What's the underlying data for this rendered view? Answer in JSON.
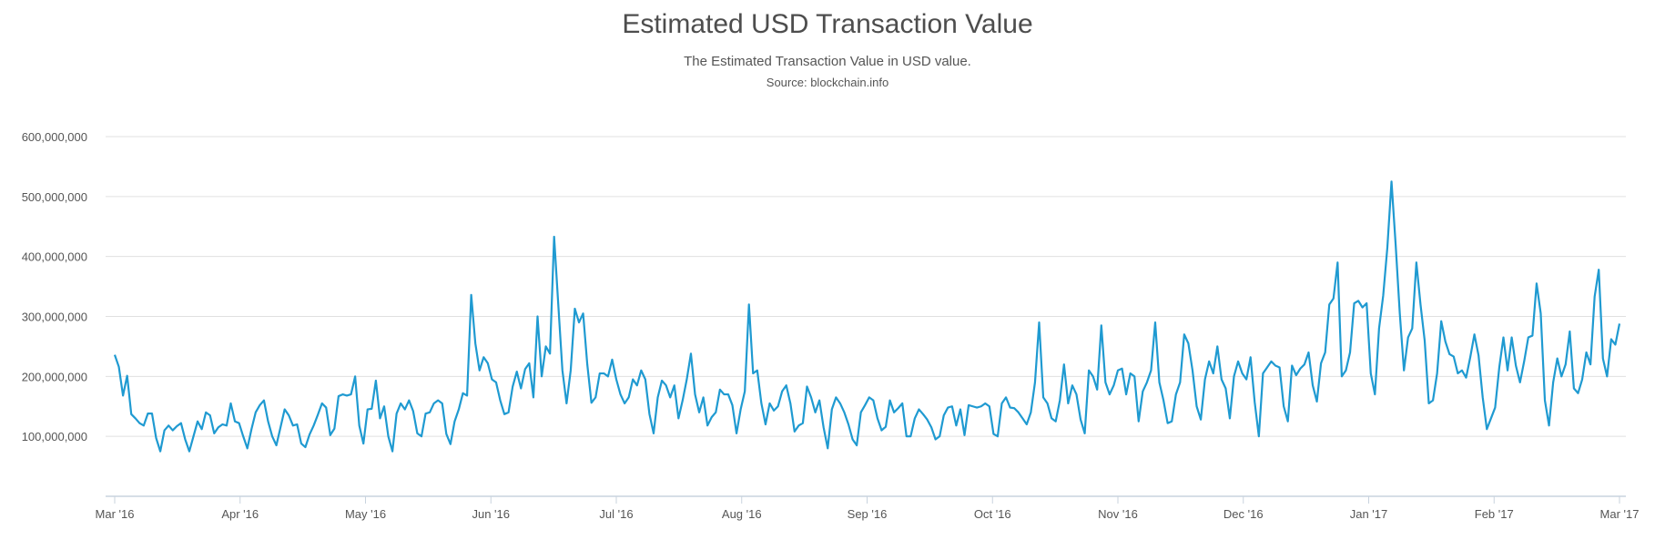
{
  "chart_data": {
    "type": "line",
    "title": "Estimated USD Transaction Value",
    "subtitle": "The Estimated Transaction Value in USD value.",
    "source": "Source: blockchain.info",
    "xlabel": "",
    "ylabel": "",
    "ylim": [
      0,
      600000000
    ],
    "y_ticks": [
      {
        "value": 100000000,
        "label": "100,000,000"
      },
      {
        "value": 200000000,
        "label": "200,000,000"
      },
      {
        "value": 300000000,
        "label": "300,000,000"
      },
      {
        "value": 400000000,
        "label": "400,000,000"
      },
      {
        "value": 500000000,
        "label": "500,000,000"
      },
      {
        "value": 600000000,
        "label": "600,000,000"
      }
    ],
    "x_ticks": [
      "Mar '16",
      "Apr '16",
      "May '16",
      "Jun '16",
      "Jul '16",
      "Aug '16",
      "Sep '16",
      "Oct '16",
      "Nov '16",
      "Dec '16",
      "Jan '17",
      "Feb '17",
      "Mar '17"
    ],
    "grid": true,
    "line_color": "#1f9ad1",
    "series": [
      {
        "x_start": "2016-03-01",
        "x_end": "2017-03-01",
        "values": [
          236000000,
          216000000,
          168000000,
          201000000,
          137000000,
          130000000,
          122000000,
          118000000,
          138000000,
          138000000,
          97000000,
          75000000,
          110000000,
          118000000,
          110000000,
          117000000,
          122000000,
          95000000,
          75000000,
          100000000,
          125000000,
          112000000,
          140000000,
          135000000,
          105000000,
          115000000,
          120000000,
          118000000,
          155000000,
          125000000,
          122000000,
          100000000,
          80000000,
          112000000,
          140000000,
          152000000,
          160000000,
          125000000,
          100000000,
          85000000,
          115000000,
          145000000,
          135000000,
          118000000,
          120000000,
          88000000,
          82000000,
          103000000,
          118000000,
          136000000,
          155000000,
          148000000,
          102000000,
          113000000,
          167000000,
          170000000,
          168000000,
          170000000,
          200000000,
          118000000,
          88000000,
          145000000,
          146000000,
          193000000,
          130000000,
          150000000,
          100000000,
          75000000,
          138000000,
          155000000,
          145000000,
          160000000,
          142000000,
          105000000,
          100000000,
          138000000,
          140000000,
          155000000,
          160000000,
          155000000,
          104000000,
          87000000,
          125000000,
          145000000,
          172000000,
          168000000,
          336000000,
          255000000,
          210000000,
          232000000,
          222000000,
          195000000,
          190000000,
          160000000,
          137000000,
          140000000,
          183000000,
          208000000,
          180000000,
          212000000,
          222000000,
          165000000,
          300000000,
          200000000,
          250000000,
          238000000,
          433000000,
          320000000,
          210000000,
          155000000,
          210000000,
          313000000,
          290000000,
          305000000,
          220000000,
          156000000,
          165000000,
          205000000,
          205000000,
          200000000,
          228000000,
          195000000,
          170000000,
          155000000,
          165000000,
          195000000,
          185000000,
          210000000,
          195000000,
          137000000,
          105000000,
          165000000,
          193000000,
          185000000,
          165000000,
          185000000,
          130000000,
          160000000,
          195000000,
          238000000,
          170000000,
          140000000,
          165000000,
          118000000,
          132000000,
          140000000,
          178000000,
          170000000,
          170000000,
          152000000,
          105000000,
          145000000,
          175000000,
          320000000,
          205000000,
          210000000,
          155000000,
          120000000,
          155000000,
          143000000,
          150000000,
          175000000,
          185000000,
          155000000,
          108000000,
          118000000,
          122000000,
          183000000,
          165000000,
          140000000,
          160000000,
          115000000,
          80000000,
          145000000,
          165000000,
          155000000,
          140000000,
          120000000,
          95000000,
          85000000,
          140000000,
          152000000,
          165000000,
          160000000,
          130000000,
          110000000,
          116000000,
          160000000,
          140000000,
          147000000,
          155000000,
          100000000,
          100000000,
          130000000,
          145000000,
          137000000,
          128000000,
          115000000,
          95000000,
          100000000,
          135000000,
          148000000,
          150000000,
          118000000,
          145000000,
          102000000,
          152000000,
          150000000,
          148000000,
          150000000,
          155000000,
          150000000,
          104000000,
          100000000,
          155000000,
          165000000,
          148000000,
          147000000,
          140000000,
          130000000,
          120000000,
          140000000,
          190000000,
          290000000,
          165000000,
          155000000,
          130000000,
          125000000,
          160000000,
          220000000,
          155000000,
          185000000,
          170000000,
          128000000,
          105000000,
          210000000,
          200000000,
          178000000,
          285000000,
          190000000,
          170000000,
          185000000,
          210000000,
          213000000,
          170000000,
          205000000,
          200000000,
          125000000,
          175000000,
          190000000,
          210000000,
          290000000,
          190000000,
          160000000,
          122000000,
          125000000,
          170000000,
          190000000,
          270000000,
          255000000,
          210000000,
          150000000,
          128000000,
          195000000,
          225000000,
          205000000,
          250000000,
          195000000,
          180000000,
          130000000,
          200000000,
          225000000,
          205000000,
          195000000,
          232000000,
          157000000,
          100000000,
          205000000,
          215000000,
          225000000,
          218000000,
          215000000,
          150000000,
          125000000,
          218000000,
          202000000,
          213000000,
          220000000,
          240000000,
          185000000,
          158000000,
          222000000,
          240000000,
          320000000,
          330000000,
          390000000,
          200000000,
          210000000,
          240000000,
          322000000,
          326000000,
          315000000,
          322000000,
          205000000,
          170000000,
          280000000,
          335000000,
          415000000,
          525000000,
          420000000,
          305000000,
          210000000,
          265000000,
          280000000,
          390000000,
          320000000,
          260000000,
          155000000,
          160000000,
          205000000,
          292000000,
          258000000,
          237000000,
          233000000,
          205000000,
          210000000,
          198000000,
          232000000,
          270000000,
          235000000,
          165000000,
          112000000,
          130000000,
          148000000,
          215000000,
          265000000,
          210000000,
          265000000,
          218000000,
          190000000,
          225000000,
          265000000,
          268000000,
          355000000,
          305000000,
          160000000,
          118000000,
          190000000,
          230000000,
          200000000,
          220000000,
          275000000,
          180000000,
          172000000,
          195000000,
          240000000,
          220000000,
          333000000,
          378000000,
          230000000,
          200000000,
          262000000,
          253000000,
          288000000
        ]
      }
    ]
  }
}
